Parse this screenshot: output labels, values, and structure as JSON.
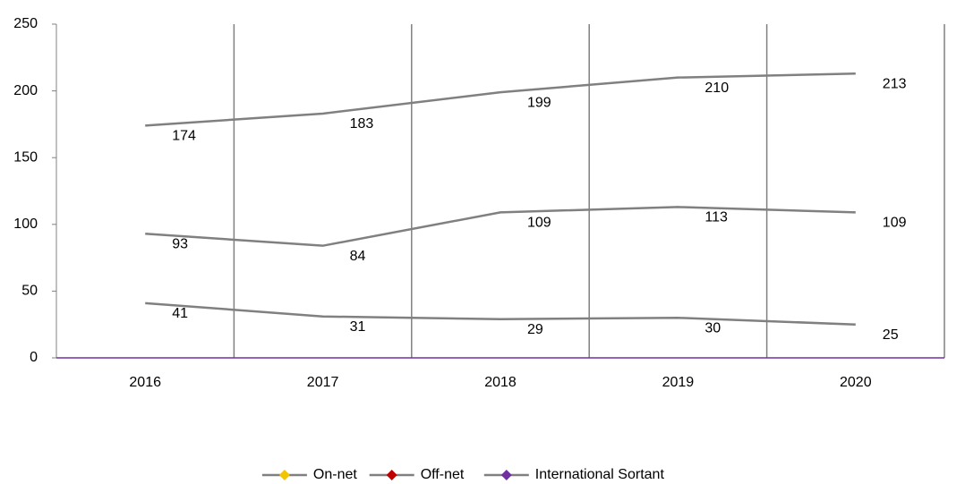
{
  "chart_data": {
    "type": "line",
    "categories": [
      "2016",
      "2017",
      "2018",
      "2019",
      "2020"
    ],
    "series": [
      {
        "name": "On-net",
        "color": "#f2c500",
        "values": [
          174,
          183,
          199,
          210,
          213
        ]
      },
      {
        "name": "Off-net",
        "color": "#c00000",
        "values": [
          93,
          84,
          109,
          113,
          109
        ]
      },
      {
        "name": "International Sortant",
        "color": "#7030a0",
        "values": [
          41,
          31,
          29,
          30,
          25
        ]
      }
    ],
    "line_color": "#808080",
    "ylim": [
      0,
      250
    ],
    "yticks": [
      0,
      50,
      100,
      150,
      200,
      250
    ],
    "grid": true,
    "legend": "bottom"
  }
}
